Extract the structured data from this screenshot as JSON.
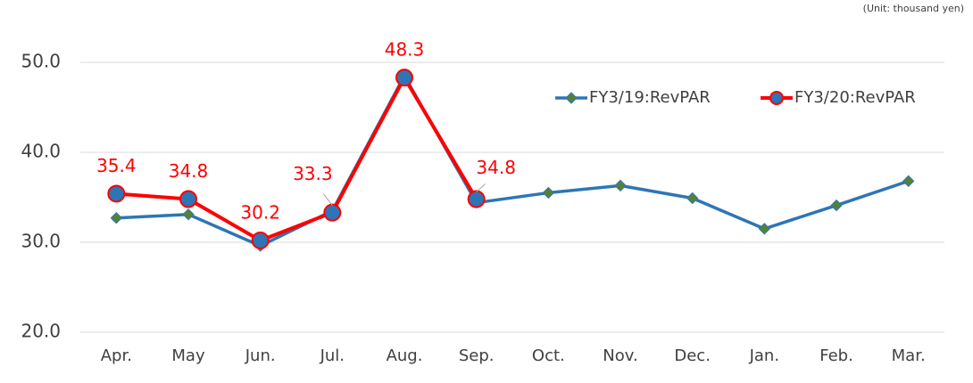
{
  "chart_data": {
    "type": "line",
    "note": "(Unit: thousand yen)",
    "categories": [
      "Apr.",
      "May",
      "Jun.",
      "Jul.",
      "Aug.",
      "Sep.",
      "Oct.",
      "Nov.",
      "Dec.",
      "Jan.",
      "Feb.",
      "Mar."
    ],
    "series": [
      {
        "name": "FY3/19:RevPAR",
        "color": "#2e75b6",
        "marker": "diamond",
        "marker_color": "#548235",
        "values": [
          32.7,
          33.1,
          29.6,
          33.5,
          48.5,
          34.4,
          35.5,
          36.3,
          34.9,
          31.5,
          34.1,
          36.8
        ]
      },
      {
        "name": "FY3/20:RevPAR",
        "color": "#ff0000",
        "marker": "circle",
        "marker_color": "#2e75b6",
        "data_labels": true,
        "values": [
          35.4,
          34.8,
          30.2,
          33.3,
          48.3,
          34.8,
          null,
          null,
          null,
          null,
          null,
          null
        ]
      }
    ],
    "ylim": [
      20,
      50
    ],
    "yticks": [
      {
        "value": 20,
        "label": "20.0"
      },
      {
        "value": 30,
        "label": "30.0"
      },
      {
        "value": 40,
        "label": "40.0"
      },
      {
        "value": 50,
        "label": "50.0"
      }
    ],
    "grid": true,
    "legend": "top-right"
  }
}
